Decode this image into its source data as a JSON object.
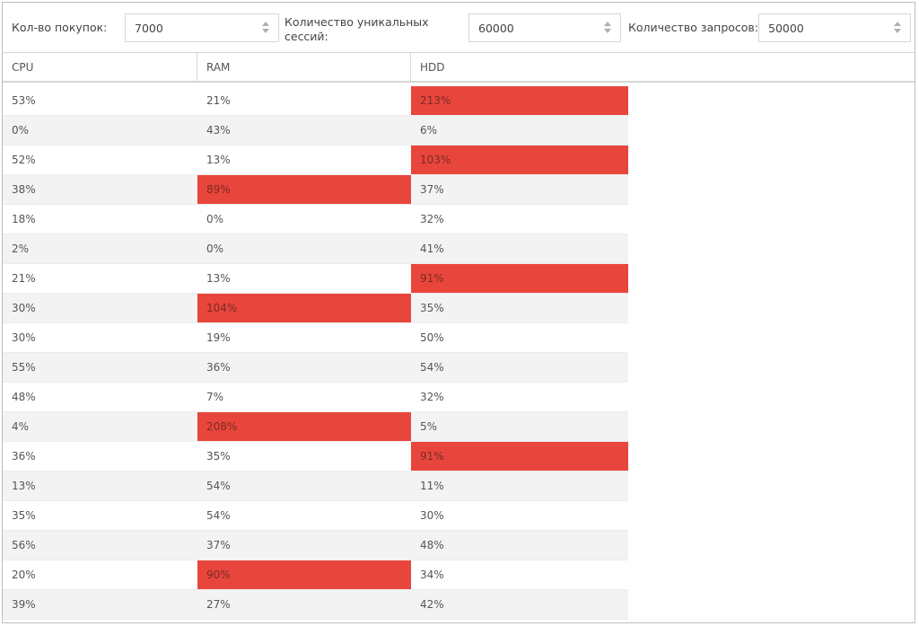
{
  "filters": {
    "purchases": {
      "label": "Кол-во покупок:",
      "value": "7000"
    },
    "sessions": {
      "label": "Количество уникальных сессий:",
      "value": "60000"
    },
    "requests": {
      "label": "Количество запросов:",
      "value": "50000"
    }
  },
  "table": {
    "columns": [
      "CPU",
      "RAM",
      "HDD"
    ],
    "highlight_color": "#e8463c",
    "rows": [
      {
        "cells": [
          "53%",
          "21%",
          "213%"
        ],
        "hot": [
          false,
          false,
          true
        ]
      },
      {
        "cells": [
          "0%",
          "43%",
          "6%"
        ],
        "hot": [
          false,
          false,
          false
        ]
      },
      {
        "cells": [
          "52%",
          "13%",
          "103%"
        ],
        "hot": [
          false,
          false,
          true
        ]
      },
      {
        "cells": [
          "38%",
          "89%",
          "37%"
        ],
        "hot": [
          false,
          true,
          false
        ]
      },
      {
        "cells": [
          "18%",
          "0%",
          "32%"
        ],
        "hot": [
          false,
          false,
          false
        ]
      },
      {
        "cells": [
          "2%",
          "0%",
          "41%"
        ],
        "hot": [
          false,
          false,
          false
        ]
      },
      {
        "cells": [
          "21%",
          "13%",
          "91%"
        ],
        "hot": [
          false,
          false,
          true
        ]
      },
      {
        "cells": [
          "30%",
          "104%",
          "35%"
        ],
        "hot": [
          false,
          true,
          false
        ]
      },
      {
        "cells": [
          "30%",
          "19%",
          "50%"
        ],
        "hot": [
          false,
          false,
          false
        ]
      },
      {
        "cells": [
          "55%",
          "36%",
          "54%"
        ],
        "hot": [
          false,
          false,
          false
        ]
      },
      {
        "cells": [
          "48%",
          "7%",
          "32%"
        ],
        "hot": [
          false,
          false,
          false
        ]
      },
      {
        "cells": [
          "4%",
          "208%",
          "5%"
        ],
        "hot": [
          false,
          true,
          false
        ]
      },
      {
        "cells": [
          "36%",
          "35%",
          "91%"
        ],
        "hot": [
          false,
          false,
          true
        ]
      },
      {
        "cells": [
          "13%",
          "54%",
          "11%"
        ],
        "hot": [
          false,
          false,
          false
        ]
      },
      {
        "cells": [
          "35%",
          "54%",
          "30%"
        ],
        "hot": [
          false,
          false,
          false
        ]
      },
      {
        "cells": [
          "56%",
          "37%",
          "48%"
        ],
        "hot": [
          false,
          false,
          false
        ]
      },
      {
        "cells": [
          "20%",
          "90%",
          "34%"
        ],
        "hot": [
          false,
          true,
          false
        ]
      },
      {
        "cells": [
          "39%",
          "27%",
          "42%"
        ],
        "hot": [
          false,
          false,
          false
        ]
      }
    ]
  }
}
